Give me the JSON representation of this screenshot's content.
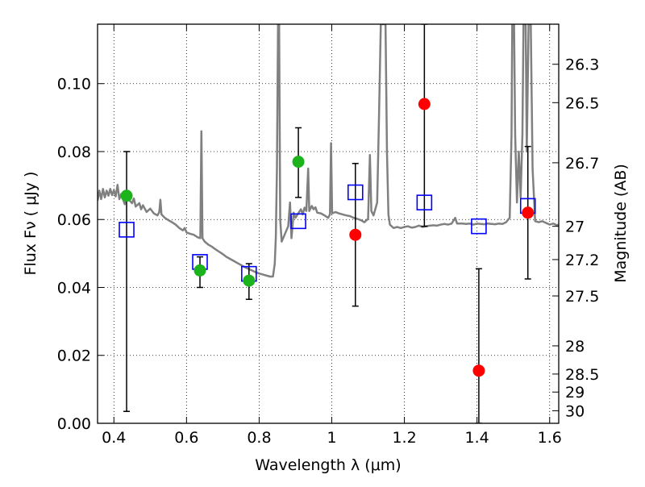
{
  "chart_data": {
    "type": "scatter",
    "xlabel": "Wavelength  λ (μm)",
    "ylabel": "Flux  Fν  ( μJy )",
    "y2label": "Magnitude (AB)",
    "xlim": [
      0.355,
      1.625
    ],
    "ylim": [
      0.0,
      0.1175
    ],
    "grid": true,
    "x_ticks": [
      0.4,
      0.6,
      0.8,
      1.0,
      1.2,
      1.4,
      1.6
    ],
    "x_tick_labels": [
      "0.4",
      "0.6",
      "0.8",
      "1",
      "1.2",
      "1.4",
      "1.6"
    ],
    "y_ticks": [
      0.0,
      0.02,
      0.04,
      0.06,
      0.08,
      0.1
    ],
    "y_tick_labels": [
      "0.00",
      "0.02",
      "0.04",
      "0.06",
      "0.08",
      "0.10"
    ],
    "mag_ticks": [
      {
        "label": "26.3",
        "flux": 0.1057
      },
      {
        "label": "26.5",
        "flux": 0.0944
      },
      {
        "label": "26.7",
        "flux": 0.0767
      },
      {
        "label": "27",
        "flux": 0.058
      },
      {
        "label": "27.2",
        "flux": 0.0482
      },
      {
        "label": "27.5",
        "flux": 0.0375
      },
      {
        "label": "28",
        "flux": 0.0228
      },
      {
        "label": "28.5",
        "flux": 0.0145
      },
      {
        "label": "29",
        "flux": 0.0092
      },
      {
        "label": "30",
        "flux": 0.0037
      }
    ],
    "model_spectrum": {
      "color": "#808080",
      "points": [
        [
          0.355,
          0.0655
        ],
        [
          0.36,
          0.0685
        ],
        [
          0.365,
          0.066
        ],
        [
          0.37,
          0.069
        ],
        [
          0.375,
          0.0665
        ],
        [
          0.38,
          0.0685
        ],
        [
          0.385,
          0.067
        ],
        [
          0.39,
          0.069
        ],
        [
          0.395,
          0.0672
        ],
        [
          0.4,
          0.0686
        ],
        [
          0.405,
          0.0668
        ],
        [
          0.41,
          0.0702
        ],
        [
          0.415,
          0.066
        ],
        [
          0.42,
          0.0675
        ],
        [
          0.425,
          0.066
        ],
        [
          0.43,
          0.0645
        ],
        [
          0.435,
          0.0672
        ],
        [
          0.44,
          0.066
        ],
        [
          0.45,
          0.0648
        ],
        [
          0.455,
          0.0662
        ],
        [
          0.46,
          0.0638
        ],
        [
          0.47,
          0.0648
        ],
        [
          0.475,
          0.063
        ],
        [
          0.48,
          0.0642
        ],
        [
          0.49,
          0.0622
        ],
        [
          0.5,
          0.0632
        ],
        [
          0.51,
          0.0618
        ],
        [
          0.52,
          0.0612
        ],
        [
          0.525,
          0.0622
        ],
        [
          0.528,
          0.0658
        ],
        [
          0.531,
          0.0615
        ],
        [
          0.54,
          0.0605
        ],
        [
          0.55,
          0.0598
        ],
        [
          0.56,
          0.0592
        ],
        [
          0.57,
          0.0585
        ],
        [
          0.58,
          0.0575
        ],
        [
          0.59,
          0.0568
        ],
        [
          0.595,
          0.0575
        ],
        [
          0.6,
          0.0562
        ],
        [
          0.61,
          0.0558
        ],
        [
          0.62,
          0.0555
        ],
        [
          0.63,
          0.0548
        ],
        [
          0.638,
          0.0545
        ],
        [
          0.641,
          0.086
        ],
        [
          0.644,
          0.0545
        ],
        [
          0.65,
          0.0535
        ],
        [
          0.66,
          0.0526
        ],
        [
          0.67,
          0.052
        ],
        [
          0.68,
          0.0512
        ],
        [
          0.69,
          0.0505
        ],
        [
          0.7,
          0.0498
        ],
        [
          0.71,
          0.049
        ],
        [
          0.72,
          0.0484
        ],
        [
          0.73,
          0.0478
        ],
        [
          0.74,
          0.0472
        ],
        [
          0.75,
          0.0466
        ],
        [
          0.76,
          0.046
        ],
        [
          0.77,
          0.0455
        ],
        [
          0.78,
          0.045
        ],
        [
          0.79,
          0.0445
        ],
        [
          0.8,
          0.0441
        ],
        [
          0.81,
          0.0438
        ],
        [
          0.82,
          0.0435
        ],
        [
          0.83,
          0.0432
        ],
        [
          0.838,
          0.0432
        ],
        [
          0.843,
          0.047
        ],
        [
          0.846,
          0.055
        ],
        [
          0.849,
          0.075
        ],
        [
          0.852,
          0.1175
        ],
        [
          0.855,
          0.1175
        ],
        [
          0.858,
          0.06
        ],
        [
          0.862,
          0.0535
        ],
        [
          0.87,
          0.0555
        ],
        [
          0.88,
          0.058
        ],
        [
          0.885,
          0.065
        ],
        [
          0.889,
          0.0545
        ],
        [
          0.895,
          0.062
        ],
        [
          0.9,
          0.0605
        ],
        [
          0.91,
          0.0622
        ],
        [
          0.915,
          0.063
        ],
        [
          0.92,
          0.0615
        ],
        [
          0.925,
          0.0635
        ],
        [
          0.93,
          0.0625
        ],
        [
          0.935,
          0.075
        ],
        [
          0.938,
          0.0625
        ],
        [
          0.945,
          0.064
        ],
        [
          0.95,
          0.063
        ],
        [
          0.955,
          0.0636
        ],
        [
          0.96,
          0.062
        ],
        [
          0.97,
          0.0618
        ],
        [
          0.98,
          0.0612
        ],
        [
          0.99,
          0.0605
        ],
        [
          0.995,
          0.0615
        ],
        [
          0.998,
          0.0825
        ],
        [
          1.001,
          0.0618
        ],
        [
          1.01,
          0.0622
        ],
        [
          1.02,
          0.0618
        ],
        [
          1.03,
          0.0615
        ],
        [
          1.04,
          0.0612
        ],
        [
          1.05,
          0.061
        ],
        [
          1.06,
          0.0605
        ],
        [
          1.07,
          0.0602
        ],
        [
          1.08,
          0.0598
        ],
        [
          1.09,
          0.0592
        ],
        [
          1.1,
          0.0602
        ],
        [
          1.105,
          0.079
        ],
        [
          1.109,
          0.0625
        ],
        [
          1.115,
          0.0612
        ],
        [
          1.125,
          0.065
        ],
        [
          1.13,
          0.09
        ],
        [
          1.135,
          0.1175
        ],
        [
          1.148,
          0.1175
        ],
        [
          1.152,
          0.08
        ],
        [
          1.156,
          0.0615
        ],
        [
          1.16,
          0.0585
        ],
        [
          1.17,
          0.0575
        ],
        [
          1.18,
          0.0578
        ],
        [
          1.19,
          0.0575
        ],
        [
          1.2,
          0.0578
        ],
        [
          1.21,
          0.058
        ],
        [
          1.22,
          0.0576
        ],
        [
          1.23,
          0.0578
        ],
        [
          1.24,
          0.0582
        ],
        [
          1.25,
          0.0578
        ],
        [
          1.26,
          0.058
        ],
        [
          1.27,
          0.0582
        ],
        [
          1.28,
          0.0583
        ],
        [
          1.29,
          0.0582
        ],
        [
          1.3,
          0.0585
        ],
        [
          1.31,
          0.0587
        ],
        [
          1.32,
          0.0585
        ],
        [
          1.33,
          0.0588
        ],
        [
          1.34,
          0.0605
        ],
        [
          1.345,
          0.0588
        ],
        [
          1.36,
          0.0588
        ],
        [
          1.37,
          0.0587
        ],
        [
          1.38,
          0.0588
        ],
        [
          1.39,
          0.0585
        ],
        [
          1.4,
          0.0588
        ],
        [
          1.41,
          0.0587
        ],
        [
          1.42,
          0.0586
        ],
        [
          1.43,
          0.0588
        ],
        [
          1.44,
          0.0587
        ],
        [
          1.45,
          0.0586
        ],
        [
          1.46,
          0.0588
        ],
        [
          1.47,
          0.0587
        ],
        [
          1.48,
          0.0592
        ],
        [
          1.49,
          0.0605
        ],
        [
          1.495,
          0.085
        ],
        [
          1.497,
          0.1175
        ],
        [
          1.502,
          0.1175
        ],
        [
          1.505,
          0.085
        ],
        [
          1.51,
          0.065
        ],
        [
          1.515,
          0.08
        ],
        [
          1.52,
          0.0665
        ],
        [
          1.525,
          0.085
        ],
        [
          1.528,
          0.1175
        ],
        [
          1.534,
          0.1175
        ],
        [
          1.537,
          0.08
        ],
        [
          1.542,
          0.1175
        ],
        [
          1.548,
          0.1175
        ],
        [
          1.553,
          0.075
        ],
        [
          1.56,
          0.0595
        ],
        [
          1.57,
          0.0592
        ],
        [
          1.58,
          0.0595
        ],
        [
          1.59,
          0.059
        ],
        [
          1.6,
          0.0585
        ],
        [
          1.61,
          0.0588
        ],
        [
          1.62,
          0.0583
        ],
        [
          1.625,
          0.0585
        ]
      ]
    },
    "series": [
      {
        "marker": "square-open",
        "color": "#0000ff",
        "points": [
          {
            "x": 0.435,
            "y": 0.057
          },
          {
            "x": 0.637,
            "y": 0.0475
          },
          {
            "x": 0.772,
            "y": 0.044
          },
          {
            "x": 0.908,
            "y": 0.0595
          },
          {
            "x": 1.065,
            "y": 0.068
          },
          {
            "x": 1.255,
            "y": 0.065
          },
          {
            "x": 1.405,
            "y": 0.058
          },
          {
            "x": 1.54,
            "y": 0.064
          }
        ]
      },
      {
        "marker": "circle",
        "color": "#1db31d",
        "points": [
          {
            "x": 0.435,
            "y": 0.067,
            "err_low": 0.0035,
            "err_high": 0.08
          },
          {
            "x": 0.637,
            "y": 0.045,
            "err_low": 0.04,
            "err_high": 0.049
          },
          {
            "x": 0.772,
            "y": 0.042,
            "err_low": 0.0365,
            "err_high": 0.047
          },
          {
            "x": 0.908,
            "y": 0.077,
            "err_low": 0.0665,
            "err_high": 0.087
          }
        ]
      },
      {
        "marker": "circle",
        "color": "#ff0000",
        "points": [
          {
            "x": 1.065,
            "y": 0.0555,
            "err_low": 0.0345,
            "err_high": 0.0765
          },
          {
            "x": 1.255,
            "y": 0.094,
            "err_low": 0.058,
            "err_high": 0.1175
          },
          {
            "x": 1.405,
            "y": 0.0155,
            "err_low": 0.0,
            "err_high": 0.0455
          },
          {
            "x": 1.54,
            "y": 0.062,
            "err_low": 0.0425,
            "err_high": 0.0815
          }
        ]
      }
    ]
  }
}
